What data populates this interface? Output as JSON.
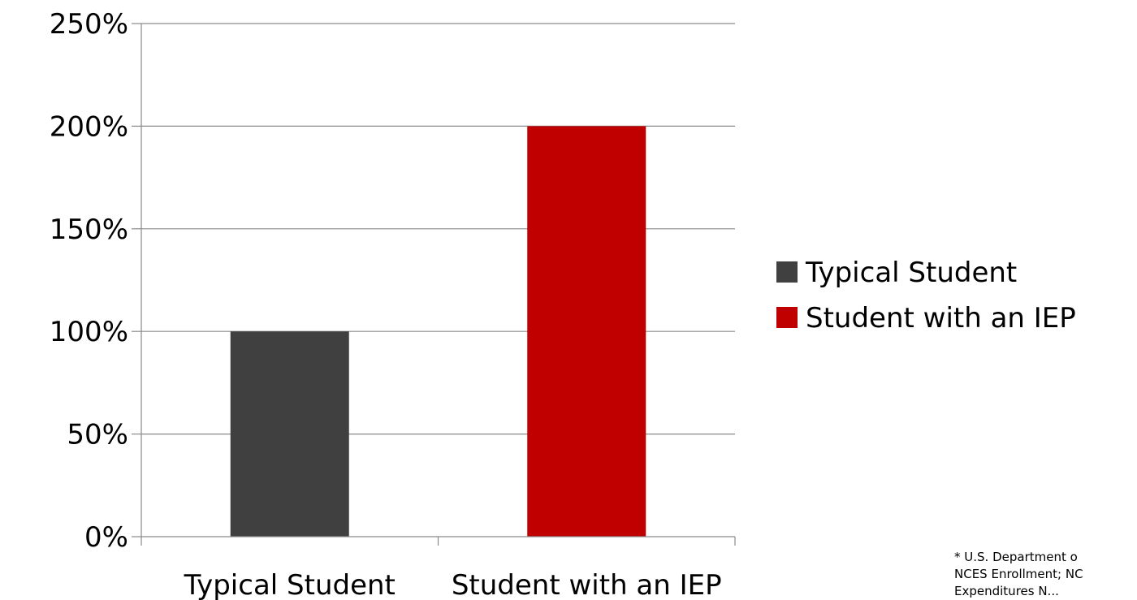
{
  "chart_data": {
    "type": "bar",
    "title": "",
    "xlabel": "",
    "ylabel": "",
    "categories": [
      "Typical Student",
      "Student with an IEP"
    ],
    "series": [
      {
        "values": [
          100,
          200
        ],
        "colors": [
          "#404040",
          "#c00000"
        ]
      }
    ],
    "y_ticks": [
      "0%",
      "50%",
      "100%",
      "150%",
      "200%",
      "250%"
    ],
    "y_tick_values": [
      0,
      50,
      100,
      150,
      200,
      250
    ],
    "ylim": [
      0,
      250
    ],
    "grid": true,
    "legend": {
      "placement": "right",
      "entries": [
        {
          "label": "Typical Student",
          "color": "#404040"
        },
        {
          "label": "Student with an IEP",
          "color": "#c00000"
        }
      ]
    }
  },
  "footnote": {
    "lines": [
      "* U.S. Department o",
      "NCES Enrollment; NC",
      "Expenditures N..."
    ]
  }
}
